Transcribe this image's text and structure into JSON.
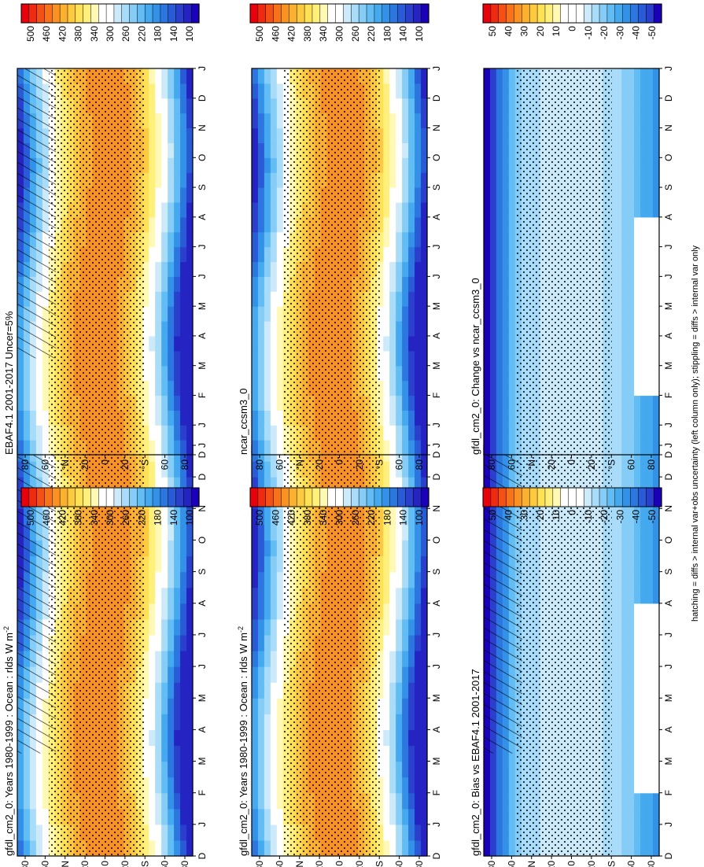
{
  "figure": {
    "footer": "hatching = diffs > internal var+obs uncertainty (left column only); stippling = diffs > internal var only"
  },
  "palettes": {
    "abs": [
      "#e8000b",
      "#ee2a10",
      "#f44f14",
      "#f77219",
      "#fa9223",
      "#fbb02f",
      "#fdca3f",
      "#ffe156",
      "#fff07c",
      "#fff9b5",
      "#ffffff",
      "#ffffff",
      "#cdeafb",
      "#a9dcf9",
      "#85cdf6",
      "#61bdf3",
      "#44a9ee",
      "#3392e8",
      "#2c76e0",
      "#2a5bd7",
      "#2a40cd",
      "#2524c3",
      "#1a00b9"
    ],
    "diff": [
      "#e8000b",
      "#ee2a10",
      "#f44f14",
      "#f77219",
      "#fa9223",
      "#fbb02f",
      "#fdca3f",
      "#ffe156",
      "#fff07c",
      "#fff9b5",
      "#ffffff",
      "#ffffff",
      "#ffffff",
      "#cdeafb",
      "#a9dcf9",
      "#85cdf6",
      "#61bdf3",
      "#44a9ee",
      "#3392e8",
      "#2c76e0",
      "#2a5bd7",
      "#2a40cd",
      "#1a00b9"
    ]
  },
  "colorbars": {
    "abs_labels": [
      "500",
      "460",
      "420",
      "380",
      "340",
      "300",
      "260",
      "220",
      "180",
      "140",
      "100"
    ],
    "diff_labels": [
      "50",
      "40",
      "30",
      "20",
      "10",
      "0",
      "-10",
      "-20",
      "-30",
      "-40",
      "-50"
    ]
  },
  "axes": {
    "months": [
      "D",
      "J",
      "F",
      "M",
      "A",
      "M",
      "J",
      "J",
      "A",
      "S",
      "O",
      "N",
      "D",
      "J"
    ],
    "lat_labels": [
      "80",
      "60",
      "°N",
      "20",
      "0",
      "20",
      "°S",
      "60",
      "80"
    ]
  },
  "chart_data": [
    {
      "type": "heatmap",
      "title": "gfdl_cm2_0: Years 1980-1999 : Ocean : rlds W m",
      "title_sup": "-2",
      "x": [
        "D",
        "J",
        "F",
        "M",
        "A",
        "M",
        "J",
        "J",
        "A",
        "S",
        "O",
        "N",
        "D",
        "J"
      ],
      "y": [
        "80",
        "60",
        "°N",
        "20",
        "0",
        "20",
        "°S",
        "60",
        "80"
      ],
      "value_range": [
        100,
        500
      ],
      "colorbar": "abs",
      "hatching": true,
      "stippling": true
    },
    {
      "type": "heatmap",
      "title": "gfdl_cm2_0: Years 1980-1999 : Ocean : rlds W m",
      "title_sup": "-2",
      "x": [
        "D",
        "J",
        "F",
        "M",
        "A",
        "M",
        "J",
        "J",
        "A",
        "S",
        "O",
        "N",
        "D",
        "J"
      ],
      "y": [
        "80",
        "60",
        "°N",
        "20",
        "0",
        "20",
        "°S",
        "60",
        "80"
      ],
      "value_range": [
        100,
        500
      ],
      "colorbar": "abs",
      "hatching": false,
      "stippling": true
    },
    {
      "type": "heatmap",
      "title": "EBAF4.1 2001-2017 Uncer=5%",
      "x": [
        "D",
        "J",
        "F",
        "M",
        "A",
        "M",
        "J",
        "J",
        "A",
        "S",
        "O",
        "N",
        "D",
        "J"
      ],
      "y": [
        "80",
        "60",
        "°N",
        "20",
        "0",
        "20",
        "°S",
        "60",
        "80"
      ],
      "value_range": [
        100,
        500
      ],
      "colorbar": "abs",
      "hatching": true,
      "stippling": true
    },
    {
      "type": "heatmap",
      "title": "ncar_ccsm3_0",
      "x": [
        "D",
        "J",
        "F",
        "M",
        "A",
        "M",
        "J",
        "J",
        "A",
        "S",
        "O",
        "N",
        "D",
        "J"
      ],
      "y": [
        "80",
        "60",
        "°N",
        "20",
        "0",
        "20",
        "°S",
        "60",
        "80"
      ],
      "value_range": [
        100,
        500
      ],
      "colorbar": "abs",
      "hatching": false,
      "stippling": true
    },
    {
      "type": "heatmap",
      "title": "gfdl_cm2_0: Bias vs EBAF4.1 2001-2017",
      "x": [
        "D",
        "J",
        "F",
        "M",
        "A",
        "M",
        "J",
        "J",
        "A",
        "S",
        "O",
        "N",
        "D",
        "J"
      ],
      "y": [
        "80",
        "60",
        "°N",
        "20",
        "0",
        "20",
        "°S",
        "60",
        "80"
      ],
      "value_range": [
        -50,
        50
      ],
      "colorbar": "diff",
      "hatching": true,
      "stippling": true
    },
    {
      "type": "heatmap",
      "title": "gfdl_cm2_0: Change vs ncar_ccsm3_0",
      "x": [
        "D",
        "J",
        "F",
        "M",
        "A",
        "M",
        "J",
        "J",
        "A",
        "S",
        "O",
        "N",
        "D",
        "J"
      ],
      "y": [
        "80",
        "60",
        "°N",
        "20",
        "0",
        "20",
        "°S",
        "60",
        "80"
      ],
      "value_range": [
        -50,
        50
      ],
      "colorbar": "diff",
      "hatching": false,
      "stippling": true
    }
  ]
}
